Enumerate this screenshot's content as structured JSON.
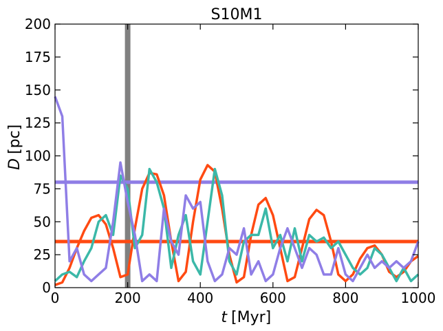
{
  "chart_data": {
    "type": "line",
    "title": "S10M1",
    "xlabel_symbol": "t",
    "xlabel_unit": "[Myr]",
    "ylabel_symbol": "D",
    "ylabel_unit": "[pc]",
    "x": [
      0,
      20,
      40,
      60,
      80,
      100,
      120,
      140,
      160,
      180,
      200,
      220,
      240,
      260,
      280,
      300,
      320,
      340,
      360,
      380,
      400,
      420,
      440,
      460,
      480,
      500,
      520,
      540,
      560,
      580,
      600,
      620,
      640,
      660,
      680,
      700,
      720,
      740,
      760,
      780,
      800,
      820,
      840,
      860,
      880,
      900,
      920,
      940,
      960,
      980,
      1000
    ],
    "series": [
      {
        "color": "#ff4a12",
        "values": [
          2,
          4,
          15,
          30,
          43,
          53,
          55,
          48,
          30,
          8,
          10,
          45,
          75,
          87,
          86,
          70,
          35,
          5,
          12,
          50,
          82,
          93,
          88,
          60,
          25,
          4,
          8,
          40,
          63,
          68,
          55,
          30,
          5,
          8,
          30,
          52,
          59,
          55,
          35,
          10,
          5,
          10,
          22,
          30,
          32,
          25,
          12,
          8,
          12,
          20,
          24
        ]
      },
      {
        "color": "#3bb8a8",
        "values": [
          5,
          10,
          12,
          8,
          20,
          30,
          50,
          55,
          40,
          85,
          75,
          30,
          40,
          90,
          80,
          60,
          15,
          40,
          55,
          20,
          10,
          50,
          90,
          70,
          20,
          10,
          35,
          40,
          40,
          60,
          30,
          40,
          20,
          45,
          20,
          40,
          35,
          38,
          30,
          35,
          25,
          15,
          10,
          15,
          30,
          25,
          15,
          5,
          15,
          5,
          10
        ]
      },
      {
        "color": "#8f7ee6",
        "values": [
          145,
          130,
          20,
          30,
          10,
          5,
          10,
          15,
          50,
          95,
          65,
          40,
          5,
          10,
          5,
          60,
          35,
          25,
          70,
          60,
          65,
          20,
          5,
          10,
          30,
          25,
          45,
          10,
          20,
          5,
          10,
          30,
          45,
          30,
          15,
          30,
          25,
          10,
          10,
          30,
          10,
          5,
          15,
          25,
          15,
          20,
          15,
          20,
          15,
          20,
          35
        ]
      }
    ],
    "hlines": [
      {
        "value": 80,
        "color": "#8f7ee6"
      },
      {
        "value": 35,
        "color": "#ff4a12"
      }
    ],
    "vlines": [
      {
        "value": 200,
        "color": "#808080"
      }
    ],
    "xlim": [
      0,
      1000
    ],
    "ylim": [
      0,
      200
    ],
    "xticks": [
      0,
      200,
      400,
      600,
      800,
      1000
    ],
    "yticks": [
      0,
      25,
      50,
      75,
      100,
      125,
      150,
      175,
      200
    ],
    "grid": false
  }
}
